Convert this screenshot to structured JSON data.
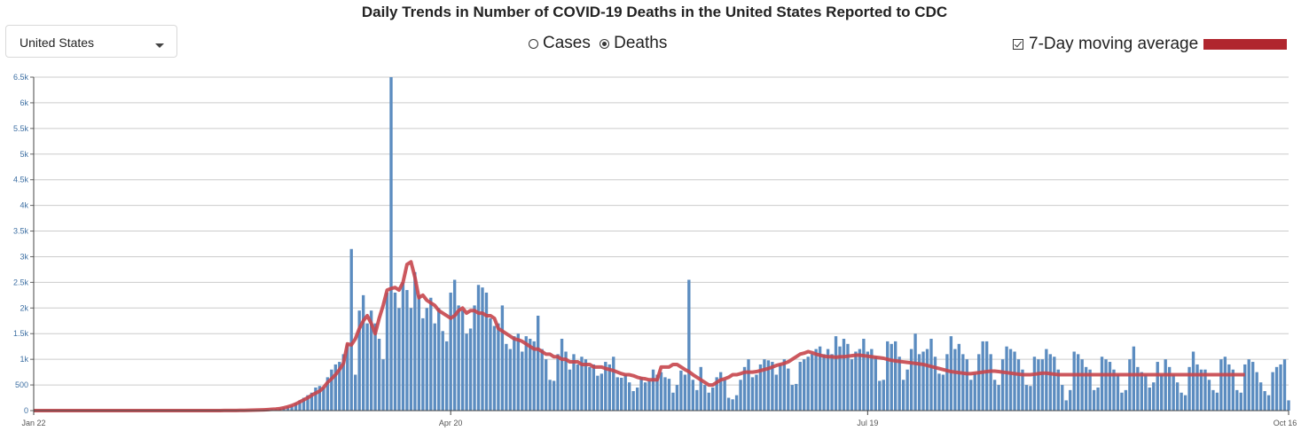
{
  "title": "Daily Trends in Number of COVID-19 Deaths in the United States Reported to CDC",
  "location_select": {
    "value": "United States"
  },
  "metric_toggle": {
    "options": [
      {
        "label": "Cases",
        "selected": false
      },
      {
        "label": "Deaths",
        "selected": true
      }
    ]
  },
  "moving_average_toggle": {
    "label": "7-Day moving average",
    "checked": true
  },
  "colors": {
    "bar": "#5b8cc0",
    "line": "#c7464d",
    "legend_swatch": "#b0262e",
    "grid": "#cccccc"
  },
  "chart_data": {
    "type": "bar",
    "title": "Daily Trends in Number of COVID-19 Deaths in the United States Reported to CDC",
    "xlabel": "",
    "ylabel": "",
    "x_start": "Jan 22",
    "x_end": "Oct 16",
    "ylim": [
      0,
      6500
    ],
    "yticks": [
      0,
      500,
      1000,
      1500,
      2000,
      2500,
      3000,
      3500,
      4000,
      4500,
      5000,
      5500,
      6000,
      6500
    ],
    "ytick_labels": [
      "0",
      "500",
      "1k",
      "1.5k",
      "2k",
      "2.5k",
      "3k",
      "3.5k",
      "4k",
      "4.5k",
      "5k",
      "5.5k",
      "6k",
      "6.5k"
    ],
    "xtick_labels": [
      "Jan 22",
      "Apr 20",
      "Jul 19",
      "Oct 16"
    ],
    "grid": true,
    "legend_position": "top-right",
    "series": [
      {
        "name": "Deaths",
        "type": "bar",
        "values": [
          0,
          0,
          0,
          0,
          0,
          0,
          0,
          0,
          0,
          0,
          0,
          0,
          0,
          0,
          0,
          0,
          0,
          0,
          0,
          0,
          0,
          0,
          0,
          0,
          0,
          0,
          0,
          0,
          0,
          0,
          0,
          0,
          0,
          0,
          0,
          0,
          0,
          0,
          0,
          1,
          0,
          1,
          0,
          1,
          1,
          0,
          1,
          2,
          2,
          3,
          3,
          3,
          5,
          3,
          5,
          10,
          8,
          10,
          15,
          20,
          25,
          30,
          40,
          60,
          80,
          100,
          150,
          200,
          250,
          300,
          350,
          450,
          480,
          450,
          650,
          800,
          900,
          950,
          1100,
          1300,
          3150,
          700,
          1950,
          2250,
          1700,
          1950,
          1700,
          1400,
          1000,
          2300,
          6500,
          2300,
          2000,
          2500,
          2350,
          2000,
          2700,
          2250,
          1800,
          2000,
          2200,
          1700,
          2000,
          1550,
          1350,
          2300,
          2550,
          2050,
          1950,
          1500,
          1600,
          2050,
          2450,
          2400,
          2300,
          1800,
          1650,
          1700,
          2050,
          1300,
          1200,
          1450,
          1500,
          1150,
          1450,
          1400,
          1350,
          1850,
          1200,
          1000,
          600,
          580,
          1100,
          1400,
          1150,
          800,
          1100,
          900,
          1050,
          1000,
          850,
          900,
          680,
          720,
          950,
          900,
          1050,
          650,
          640,
          700,
          550,
          380,
          450,
          650,
          550,
          580,
          800,
          700,
          750,
          650,
          620,
          350,
          500,
          780,
          700,
          2550,
          600,
          400,
          850,
          500,
          350,
          450,
          650,
          750,
          600,
          250,
          220,
          300,
          600,
          850,
          1000,
          650,
          700,
          900,
          1000,
          980,
          950,
          700,
          900,
          1000,
          820,
          500,
          520,
          950,
          1000,
          1050,
          1100,
          1200,
          1250,
          1100,
          1200,
          1100,
          1450,
          1250,
          1400,
          1300,
          1000,
          1150,
          1200,
          1400,
          1150,
          1200,
          1050,
          580,
          600,
          1350,
          1300,
          1350,
          1050,
          600,
          800,
          1200,
          1500,
          1100,
          1150,
          1200,
          1400,
          1050,
          720,
          700,
          1100,
          1450,
          1200,
          1300,
          1100,
          1000,
          600,
          720,
          1100,
          1350,
          1350,
          1100,
          600,
          500,
          1000,
          1250,
          1200,
          1150,
          1000,
          800,
          500,
          480,
          1050,
          1000,
          1000,
          1200,
          1100,
          1050,
          800,
          500,
          200,
          400,
          1150,
          1100,
          1000,
          850,
          800,
          400,
          450,
          1050,
          1000,
          950,
          800,
          700,
          350,
          400,
          1000,
          1250,
          850,
          750,
          700,
          450,
          550,
          950,
          700,
          1000,
          850,
          700,
          550,
          350,
          300,
          850,
          1150,
          900,
          800,
          800,
          600,
          400,
          350,
          1000,
          1050,
          900,
          800,
          400,
          350,
          900,
          1000,
          950,
          750,
          550,
          380,
          300,
          750,
          850,
          900,
          1000,
          200
        ]
      },
      {
        "name": "7-Day moving average",
        "type": "line",
        "values": [
          0,
          0,
          0,
          0,
          0,
          0,
          0,
          0,
          0,
          0,
          0,
          0,
          0,
          0,
          0,
          0,
          0,
          0,
          0,
          0,
          0,
          0,
          0,
          0,
          0,
          0,
          0,
          0,
          0,
          0,
          0,
          0,
          0,
          0,
          0,
          0,
          0,
          0,
          0,
          0,
          0,
          0,
          0,
          0,
          0,
          0,
          1,
          1,
          2,
          2,
          2,
          3,
          4,
          5,
          7,
          8,
          10,
          13,
          16,
          20,
          25,
          30,
          40,
          55,
          75,
          100,
          130,
          170,
          210,
          250,
          300,
          340,
          380,
          450,
          550,
          620,
          700,
          800,
          920,
          1300,
          1280,
          1400,
          1600,
          1750,
          1850,
          1700,
          1500,
          1800,
          2050,
          2350,
          2380,
          2400,
          2350,
          2500,
          2850,
          2900,
          2600,
          2200,
          2250,
          2150,
          2100,
          2050,
          1950,
          1900,
          1850,
          1800,
          1850,
          1950,
          2000,
          1900,
          1950,
          1950,
          1900,
          1900,
          1850,
          1850,
          1800,
          1600,
          1550,
          1500,
          1450,
          1400,
          1380,
          1350,
          1300,
          1250,
          1200,
          1200,
          1150,
          1100,
          1100,
          1050,
          1050,
          1000,
          1000,
          950,
          950,
          950,
          900,
          900,
          900,
          850,
          850,
          850,
          820,
          800,
          780,
          750,
          720,
          700,
          700,
          680,
          650,
          630,
          620,
          600,
          600,
          600,
          850,
          850,
          850,
          900,
          900,
          850,
          800,
          760,
          700,
          650,
          600,
          550,
          500,
          500,
          550,
          600,
          620,
          650,
          700,
          700,
          720,
          750,
          750,
          750,
          760,
          780,
          800,
          820,
          850,
          880,
          900,
          920,
          950,
          1000,
          1050,
          1100,
          1120,
          1150,
          1130,
          1100,
          1080,
          1060,
          1050,
          1050,
          1040,
          1050,
          1050,
          1060,
          1070,
          1080,
          1080,
          1070,
          1060,
          1050,
          1040,
          1030,
          1020,
          1000,
          980,
          970,
          960,
          950,
          940,
          930,
          920,
          910,
          900,
          880,
          860,
          840,
          820,
          800,
          780,
          760,
          750,
          740,
          730,
          720,
          720,
          730,
          740,
          750,
          760,
          770,
          770,
          760,
          750,
          740,
          730,
          720,
          710,
          700,
          700,
          700,
          710,
          720,
          730,
          730,
          720,
          710,
          700,
          700,
          700,
          700,
          700,
          700,
          700,
          700,
          700,
          700,
          700,
          700,
          700,
          700,
          700,
          700,
          700,
          700,
          700,
          700,
          700,
          700,
          700,
          700,
          700,
          700,
          700,
          700,
          700,
          700,
          700,
          700,
          700,
          700,
          700,
          700,
          700,
          700,
          700,
          700,
          700,
          700,
          700,
          700,
          700,
          700,
          700,
          700
        ]
      }
    ]
  }
}
